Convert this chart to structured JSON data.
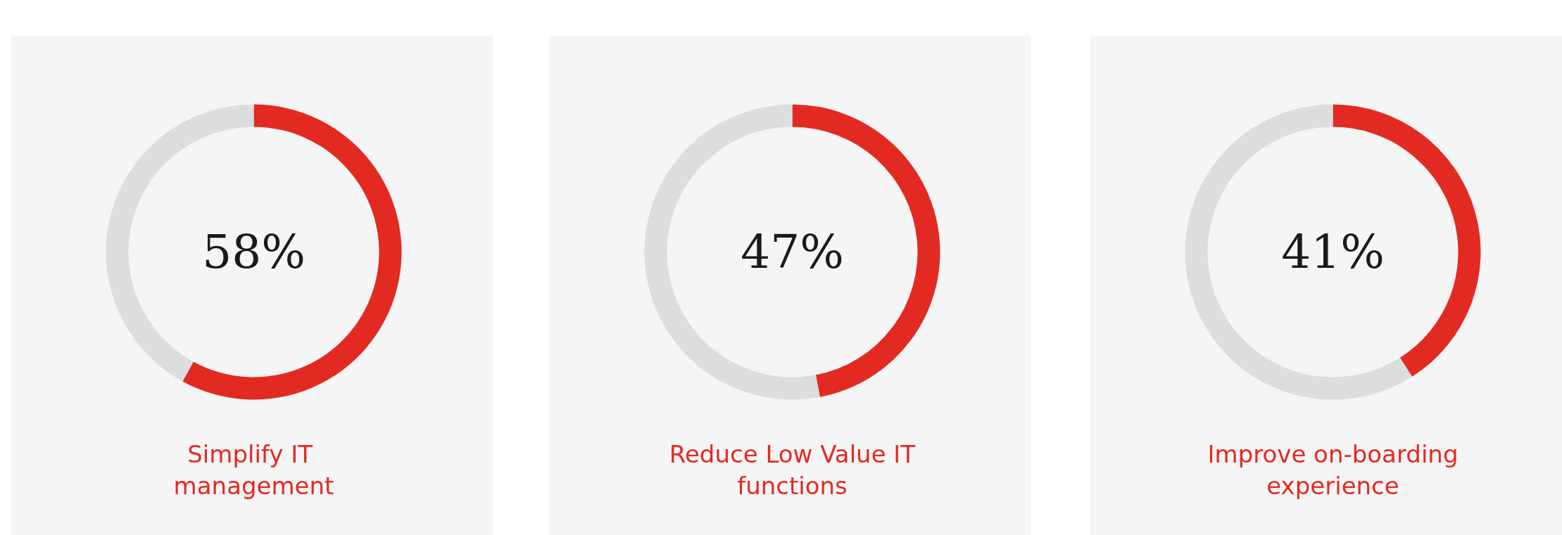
{
  "chart_data": [
    {
      "type": "donut",
      "title": "Simplify  IT management",
      "categories": [
        null,
        null
      ],
      "values": [
        58,
        42
      ],
      "colors": [
        "#e32a22",
        "#dcdddf"
      ],
      "annotations": [
        "58%"
      ]
    },
    {
      "type": "donut",
      "title": "Reduce Low Value IT functions",
      "categories": [
        null,
        null
      ],
      "values": [
        47,
        53
      ],
      "colors": [
        "#e32a22",
        "#dcdddf"
      ],
      "annotations": [
        "47%"
      ]
    },
    {
      "type": "donut",
      "title": "Improve on-boarding experience",
      "categories": [
        null,
        null
      ],
      "values": [
        41,
        59
      ],
      "colors": [
        "#e32a22",
        "#dcdddf"
      ],
      "annotations": [
        "41%"
      ]
    }
  ]
}
